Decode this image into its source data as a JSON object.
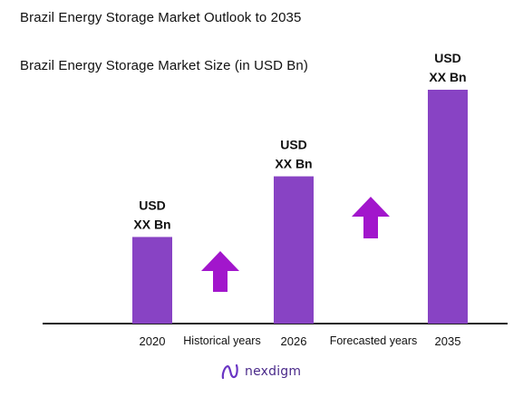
{
  "chart_data": {
    "type": "bar",
    "title": "Brazil Energy Storage Market Outlook to 2035",
    "subtitle": "Brazil Energy Storage Market Size (in USD Bn)",
    "categories": [
      "2020",
      "2026",
      "2035"
    ],
    "series": [
      {
        "values": [
          1.0,
          1.7,
          2.7
        ],
        "labels": [
          [
            "USD",
            "XX Bn"
          ],
          [
            "USD",
            "XX Bn"
          ],
          [
            "USD",
            "XX Bn"
          ]
        ]
      }
    ],
    "ylim": [
      0,
      2.7
    ],
    "grid": false,
    "annotations": {
      "historical": "Historical years",
      "forecasted": "Forecasted years"
    },
    "colors": {
      "bar": "#8843c4",
      "arrow": "#a216cc",
      "axis": "#222222"
    }
  },
  "brand": {
    "name": "nexdigm",
    "icon": "nexdigm-logo-icon",
    "color": "#4a2a8a"
  }
}
